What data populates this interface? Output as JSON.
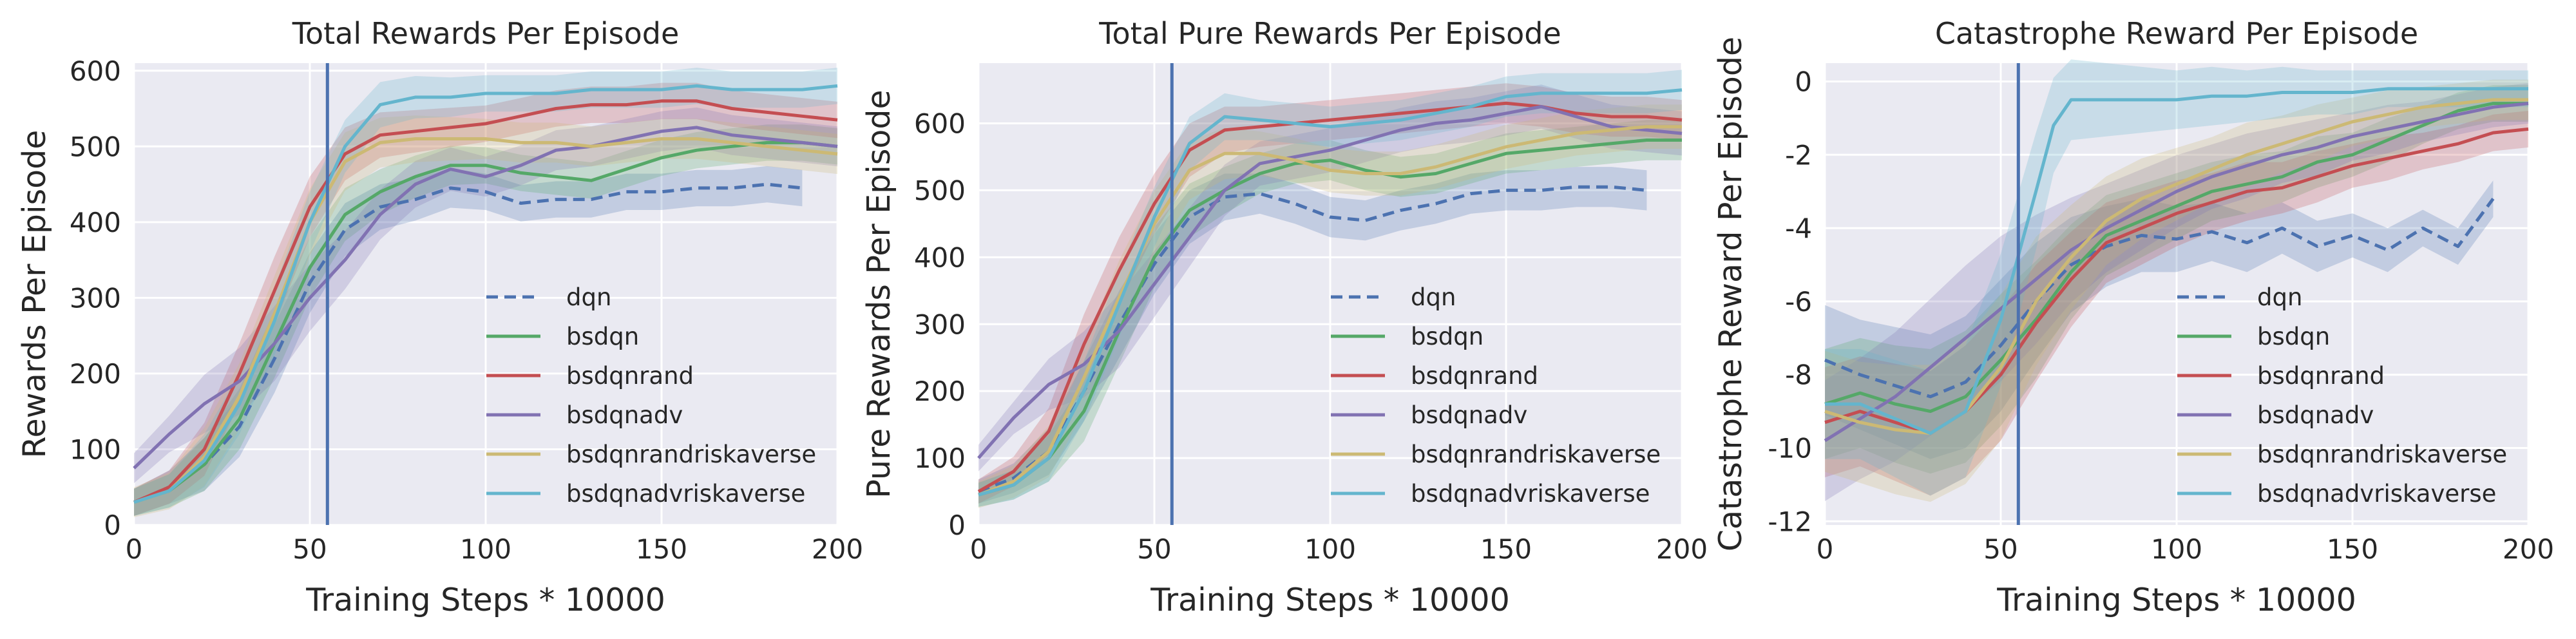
{
  "chart_data": [
    {
      "type": "line",
      "title": "Total Rewards Per Episode",
      "xlabel": "Training Steps * 10000",
      "ylabel": "Rewards Per Episode",
      "xlim": [
        0,
        200
      ],
      "ylim": [
        0,
        610
      ],
      "xticks": [
        0,
        50,
        100,
        150,
        200
      ],
      "yticks": [
        0,
        100,
        200,
        300,
        400,
        500,
        600
      ],
      "grid": true,
      "legend": "lower-right",
      "vline_x": 55,
      "series": [
        {
          "name": "dqn",
          "color": "#4c72b0",
          "dash": true,
          "x": [
            0,
            10,
            20,
            30,
            40,
            50,
            60,
            70,
            80,
            90,
            100,
            110,
            120,
            130,
            140,
            150,
            160,
            170,
            180,
            190
          ],
          "y": [
            30,
            50,
            80,
            130,
            220,
            320,
            390,
            420,
            430,
            445,
            440,
            425,
            430,
            430,
            440,
            440,
            445,
            445,
            450,
            445
          ]
        },
        {
          "name": "bsdqn",
          "color": "#55a868",
          "x": [
            0,
            10,
            20,
            30,
            40,
            50,
            60,
            70,
            80,
            90,
            100,
            110,
            120,
            130,
            140,
            150,
            160,
            170,
            180,
            190,
            200
          ],
          "y": [
            30,
            45,
            80,
            140,
            240,
            340,
            410,
            440,
            460,
            475,
            475,
            465,
            460,
            455,
            470,
            485,
            495,
            500,
            505,
            505,
            500
          ]
        },
        {
          "name": "bsdqnrand",
          "color": "#c44e52",
          "x": [
            0,
            10,
            20,
            30,
            40,
            50,
            60,
            70,
            80,
            90,
            100,
            110,
            120,
            130,
            140,
            150,
            160,
            170,
            180,
            190,
            200
          ],
          "y": [
            30,
            50,
            100,
            200,
            310,
            420,
            490,
            515,
            520,
            525,
            530,
            540,
            550,
            555,
            555,
            560,
            560,
            550,
            545,
            540,
            535
          ]
        },
        {
          "name": "bsdqnadv",
          "color": "#8172b2",
          "x": [
            0,
            10,
            20,
            30,
            40,
            50,
            60,
            70,
            80,
            90,
            100,
            110,
            120,
            130,
            140,
            150,
            160,
            170,
            180,
            190,
            200
          ],
          "y": [
            75,
            120,
            160,
            190,
            240,
            300,
            350,
            410,
            450,
            470,
            460,
            475,
            495,
            500,
            510,
            520,
            525,
            515,
            510,
            505,
            500
          ]
        },
        {
          "name": "bsdqnrandriskaverse",
          "color": "#ccb974",
          "x": [
            0,
            10,
            20,
            30,
            40,
            50,
            60,
            70,
            80,
            90,
            100,
            110,
            120,
            130,
            140,
            150,
            160,
            170,
            180,
            190,
            200
          ],
          "y": [
            30,
            45,
            90,
            170,
            280,
            400,
            480,
            505,
            510,
            510,
            510,
            505,
            505,
            500,
            505,
            510,
            510,
            505,
            500,
            495,
            490
          ]
        },
        {
          "name": "bsdqnadvriskaverse",
          "color": "#64b5cd",
          "x": [
            0,
            10,
            20,
            30,
            40,
            50,
            60,
            70,
            80,
            90,
            100,
            110,
            120,
            130,
            140,
            150,
            160,
            170,
            180,
            190,
            200
          ],
          "y": [
            30,
            45,
            85,
            160,
            270,
            400,
            500,
            555,
            565,
            565,
            570,
            570,
            570,
            575,
            575,
            575,
            580,
            575,
            575,
            575,
            580
          ]
        }
      ]
    },
    {
      "type": "line",
      "title": "Total Pure Rewards Per Episode",
      "xlabel": "Training Steps * 10000",
      "ylabel": "Pure Rewards Per Episode",
      "xlim": [
        0,
        200
      ],
      "ylim": [
        0,
        690
      ],
      "xticks": [
        0,
        50,
        100,
        150,
        200
      ],
      "yticks": [
        0,
        100,
        200,
        300,
        400,
        500,
        600
      ],
      "grid": true,
      "legend": "lower-right",
      "vline_x": 55,
      "series": [
        {
          "name": "dqn",
          "color": "#4c72b0",
          "dash": true,
          "x": [
            0,
            10,
            20,
            30,
            40,
            50,
            60,
            70,
            80,
            90,
            100,
            110,
            120,
            130,
            140,
            150,
            160,
            170,
            180,
            190
          ],
          "y": [
            50,
            70,
            110,
            200,
            300,
            390,
            460,
            490,
            495,
            480,
            460,
            455,
            470,
            480,
            495,
            500,
            500,
            505,
            505,
            500
          ]
        },
        {
          "name": "bsdqn",
          "color": "#55a868",
          "x": [
            0,
            10,
            20,
            30,
            40,
            50,
            60,
            70,
            80,
            90,
            100,
            110,
            120,
            130,
            140,
            150,
            160,
            170,
            180,
            190,
            200
          ],
          "y": [
            45,
            60,
            100,
            170,
            290,
            400,
            470,
            500,
            525,
            540,
            545,
            530,
            520,
            525,
            540,
            555,
            560,
            565,
            570,
            575,
            575
          ]
        },
        {
          "name": "bsdqnrand",
          "color": "#c44e52",
          "x": [
            0,
            10,
            20,
            30,
            40,
            50,
            60,
            70,
            80,
            90,
            100,
            110,
            120,
            130,
            140,
            150,
            160,
            170,
            180,
            190,
            200
          ],
          "y": [
            50,
            80,
            140,
            270,
            380,
            480,
            560,
            590,
            595,
            600,
            605,
            610,
            615,
            620,
            625,
            630,
            625,
            615,
            610,
            610,
            605
          ]
        },
        {
          "name": "bsdqnadv",
          "color": "#8172b2",
          "x": [
            0,
            10,
            20,
            30,
            40,
            50,
            60,
            70,
            80,
            90,
            100,
            110,
            120,
            130,
            140,
            150,
            160,
            170,
            180,
            190,
            200
          ],
          "y": [
            100,
            160,
            210,
            240,
            290,
            360,
            430,
            500,
            540,
            550,
            560,
            575,
            590,
            600,
            605,
            615,
            625,
            610,
            595,
            590,
            585
          ]
        },
        {
          "name": "bsdqnrandriskaverse",
          "color": "#ccb974",
          "x": [
            0,
            10,
            20,
            30,
            40,
            50,
            60,
            70,
            80,
            90,
            100,
            110,
            120,
            130,
            140,
            150,
            160,
            170,
            180,
            190,
            200
          ],
          "y": [
            45,
            65,
            110,
            220,
            340,
            450,
            530,
            555,
            555,
            545,
            530,
            525,
            525,
            535,
            550,
            565,
            575,
            585,
            590,
            595,
            595
          ]
        },
        {
          "name": "bsdqnadvriskaverse",
          "color": "#64b5cd",
          "x": [
            0,
            10,
            20,
            30,
            40,
            50,
            60,
            70,
            80,
            90,
            100,
            110,
            120,
            130,
            140,
            150,
            160,
            170,
            180,
            190,
            200
          ],
          "y": [
            45,
            60,
            100,
            200,
            330,
            460,
            570,
            610,
            605,
            600,
            595,
            600,
            605,
            615,
            625,
            640,
            645,
            645,
            645,
            645,
            650
          ]
        }
      ]
    },
    {
      "type": "line",
      "title": "Catastrophe Reward Per Episode",
      "xlabel": "Training Steps * 10000",
      "ylabel": "Catastrophe Reward Per Episode",
      "xlim": [
        0,
        200
      ],
      "ylim": [
        -12.1,
        0.5
      ],
      "xticks": [
        0,
        50,
        100,
        150,
        200
      ],
      "yticks": [
        0,
        -2,
        -4,
        -6,
        -8,
        -10,
        -12
      ],
      "grid": true,
      "legend": "lower-right",
      "vline_x": 55,
      "series": [
        {
          "name": "dqn",
          "color": "#4c72b0",
          "dash": true,
          "x": [
            0,
            10,
            20,
            30,
            40,
            50,
            60,
            70,
            80,
            90,
            100,
            110,
            120,
            130,
            140,
            150,
            160,
            170,
            180,
            190
          ],
          "y": [
            -7.6,
            -8.0,
            -8.3,
            -8.6,
            -8.2,
            -7.2,
            -6.0,
            -5.0,
            -4.5,
            -4.2,
            -4.3,
            -4.1,
            -4.4,
            -4.0,
            -4.5,
            -4.2,
            -4.6,
            -4.0,
            -4.5,
            -3.2
          ]
        },
        {
          "name": "bsdqn",
          "color": "#55a868",
          "x": [
            0,
            10,
            20,
            30,
            40,
            50,
            60,
            70,
            80,
            90,
            100,
            110,
            120,
            130,
            140,
            150,
            160,
            170,
            180,
            190,
            200
          ],
          "y": [
            -8.8,
            -8.5,
            -8.8,
            -9.0,
            -8.6,
            -7.6,
            -6.5,
            -5.2,
            -4.2,
            -3.8,
            -3.4,
            -3.0,
            -2.8,
            -2.6,
            -2.2,
            -2.0,
            -1.6,
            -1.2,
            -0.8,
            -0.6,
            -0.6
          ]
        },
        {
          "name": "bsdqnrand",
          "color": "#c44e52",
          "x": [
            0,
            10,
            20,
            30,
            40,
            50,
            60,
            70,
            80,
            90,
            100,
            110,
            120,
            130,
            140,
            150,
            160,
            170,
            180,
            190,
            200
          ],
          "y": [
            -9.3,
            -9.0,
            -9.3,
            -9.6,
            -9.0,
            -8.0,
            -6.6,
            -5.4,
            -4.4,
            -4.0,
            -3.6,
            -3.3,
            -3.0,
            -2.9,
            -2.6,
            -2.3,
            -2.1,
            -1.9,
            -1.7,
            -1.4,
            -1.3
          ]
        },
        {
          "name": "bsdqnadv",
          "color": "#8172b2",
          "x": [
            0,
            10,
            20,
            30,
            40,
            50,
            60,
            70,
            80,
            90,
            100,
            110,
            120,
            130,
            140,
            150,
            160,
            170,
            180,
            190,
            200
          ],
          "y": [
            -9.8,
            -9.2,
            -8.6,
            -7.8,
            -7.0,
            -6.2,
            -5.4,
            -4.6,
            -4.0,
            -3.5,
            -3.0,
            -2.6,
            -2.3,
            -2.0,
            -1.8,
            -1.5,
            -1.3,
            -1.1,
            -0.9,
            -0.7,
            -0.6
          ]
        },
        {
          "name": "bsdqnrandriskaverse",
          "color": "#ccb974",
          "x": [
            0,
            10,
            20,
            30,
            40,
            50,
            60,
            70,
            80,
            90,
            100,
            110,
            120,
            130,
            140,
            150,
            160,
            170,
            180,
            190,
            200
          ],
          "y": [
            -9.0,
            -9.3,
            -9.5,
            -9.6,
            -9.0,
            -7.8,
            -6.0,
            -4.8,
            -3.8,
            -3.2,
            -2.8,
            -2.4,
            -2.0,
            -1.7,
            -1.4,
            -1.1,
            -0.9,
            -0.7,
            -0.6,
            -0.5,
            -0.5
          ]
        },
        {
          "name": "bsdqnadvriskaverse",
          "color": "#64b5cd",
          "x": [
            0,
            10,
            20,
            30,
            40,
            50,
            60,
            65,
            70,
            80,
            90,
            100,
            110,
            120,
            130,
            140,
            150,
            160,
            170,
            180,
            190,
            200
          ],
          "y": [
            -8.8,
            -8.8,
            -9.2,
            -9.6,
            -9.0,
            -6.5,
            -3.0,
            -1.2,
            -0.5,
            -0.5,
            -0.5,
            -0.5,
            -0.4,
            -0.4,
            -0.3,
            -0.3,
            -0.3,
            -0.2,
            -0.2,
            -0.2,
            -0.2,
            -0.2
          ]
        }
      ]
    }
  ]
}
